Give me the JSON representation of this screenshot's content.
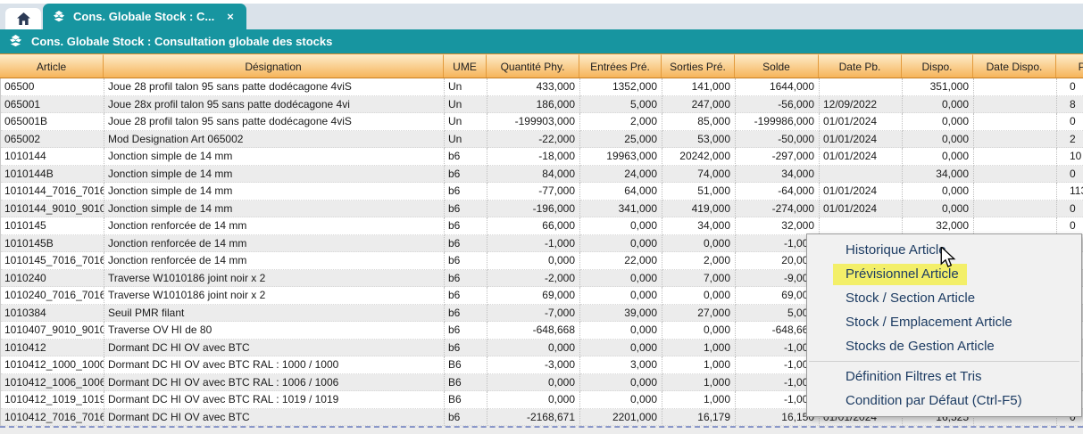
{
  "tabs": {
    "active_tab": {
      "label": "Cons. Globale Stock : C...",
      "close": "×"
    }
  },
  "title_bar": {
    "title": "Cons. Globale Stock : Consultation globale des stocks"
  },
  "table": {
    "columns": [
      {
        "key": "article",
        "label": "Article",
        "align": "al"
      },
      {
        "key": "designation",
        "label": "Désignation",
        "align": "al"
      },
      {
        "key": "ume",
        "label": "UME",
        "align": "al"
      },
      {
        "key": "qte_phy",
        "label": "Quantité Phy.",
        "align": "ar"
      },
      {
        "key": "entrees",
        "label": "Entrées Pré.",
        "align": "ar"
      },
      {
        "key": "sorties",
        "label": "Sorties Pré.",
        "align": "ar"
      },
      {
        "key": "solde",
        "label": "Solde",
        "align": "ar"
      },
      {
        "key": "date_pb",
        "label": "Date Pb.",
        "align": "al"
      },
      {
        "key": "dispo",
        "label": "Dispo.",
        "align": "ar"
      },
      {
        "key": "date_dispo",
        "label": "Date Dispo.",
        "align": "al"
      },
      {
        "key": "pu",
        "label": "PU",
        "align": "apu"
      }
    ],
    "rows": [
      {
        "article": "06500",
        "designation": "Joue 28 profil talon 95 sans patte dodécagone 4viS",
        "ume": "Un",
        "qte_phy": "433,000",
        "entrees": "1352,000",
        "sorties": "141,000",
        "solde": "1644,000",
        "date_pb": "",
        "dispo": "351,000",
        "date_dispo": "",
        "pu": "0"
      },
      {
        "article": "065001",
        "designation": "Joue 28x profil talon 95 sans patte dodécagone 4vi",
        "ume": "Un",
        "qte_phy": "186,000",
        "entrees": "5,000",
        "sorties": "247,000",
        "solde": "-56,000",
        "date_pb": "12/09/2022",
        "dispo": "0,000",
        "date_dispo": "",
        "pu": "8"
      },
      {
        "article": "065001B",
        "designation": "Joue 28 profil talon 95 sans patte dodécagone 4viS",
        "ume": "Un",
        "qte_phy": "-199903,000",
        "entrees": "2,000",
        "sorties": "85,000",
        "solde": "-199986,000",
        "date_pb": "01/01/2024",
        "dispo": "0,000",
        "date_dispo": "",
        "pu": "0"
      },
      {
        "article": "065002",
        "designation": "Mod Designation Art 065002",
        "ume": "Un",
        "qte_phy": "-22,000",
        "entrees": "25,000",
        "sorties": "53,000",
        "solde": "-50,000",
        "date_pb": "01/01/2024",
        "dispo": "0,000",
        "date_dispo": "",
        "pu": "2"
      },
      {
        "article": "1010144",
        "designation": "Jonction simple de 14 mm",
        "ume": "b6",
        "qte_phy": "-18,000",
        "entrees": "19963,000",
        "sorties": "20242,000",
        "solde": "-297,000",
        "date_pb": "01/01/2024",
        "dispo": "0,000",
        "date_dispo": "",
        "pu": "10"
      },
      {
        "article": "1010144B",
        "designation": "Jonction simple de 14 mm",
        "ume": "b6",
        "qte_phy": "84,000",
        "entrees": "24,000",
        "sorties": "74,000",
        "solde": "34,000",
        "date_pb": "",
        "dispo": "34,000",
        "date_dispo": "",
        "pu": "0"
      },
      {
        "article": "1010144_7016_7016",
        "designation": "Jonction simple de 14 mm",
        "ume": "b6",
        "qte_phy": "-77,000",
        "entrees": "64,000",
        "sorties": "51,000",
        "solde": "-64,000",
        "date_pb": "01/01/2024",
        "dispo": "0,000",
        "date_dispo": "",
        "pu": "113"
      },
      {
        "article": "1010144_9010_9010",
        "designation": "Jonction simple de 14 mm",
        "ume": "b6",
        "qte_phy": "-196,000",
        "entrees": "341,000",
        "sorties": "419,000",
        "solde": "-274,000",
        "date_pb": "01/01/2024",
        "dispo": "0,000",
        "date_dispo": "",
        "pu": "0"
      },
      {
        "article": "1010145",
        "designation": "Jonction renforcée de 14 mm",
        "ume": "b6",
        "qte_phy": "66,000",
        "entrees": "0,000",
        "sorties": "34,000",
        "solde": "32,000",
        "date_pb": "",
        "dispo": "32,000",
        "date_dispo": "",
        "pu": "0"
      },
      {
        "article": "1010145B",
        "designation": "Jonction renforcée de 14 mm",
        "ume": "b6",
        "qte_phy": "-1,000",
        "entrees": "0,000",
        "sorties": "0,000",
        "solde": "-1,000",
        "date_pb": "",
        "dispo": "",
        "date_dispo": "",
        "pu": ""
      },
      {
        "article": "1010145_7016_7016",
        "designation": "Jonction renforcée de 14 mm",
        "ume": "b6",
        "qte_phy": "0,000",
        "entrees": "22,000",
        "sorties": "2,000",
        "solde": "20,000",
        "date_pb": "",
        "dispo": "",
        "date_dispo": "",
        "pu": ""
      },
      {
        "article": "1010240",
        "designation": "Traverse W1010186 joint noir x 2",
        "ume": "b6",
        "qte_phy": "-2,000",
        "entrees": "0,000",
        "sorties": "7,000",
        "solde": "-9,000",
        "date_pb": "",
        "dispo": "",
        "date_dispo": "",
        "pu": ""
      },
      {
        "article": "1010240_7016_7016",
        "designation": "Traverse W1010186 joint noir x 2",
        "ume": "b6",
        "qte_phy": "69,000",
        "entrees": "0,000",
        "sorties": "0,000",
        "solde": "69,000",
        "date_pb": "",
        "dispo": "",
        "date_dispo": "",
        "pu": ""
      },
      {
        "article": "1010384",
        "designation": "Seuil PMR filant",
        "ume": "b6",
        "qte_phy": "-7,000",
        "entrees": "39,000",
        "sorties": "27,000",
        "solde": "5,000",
        "date_pb": "",
        "dispo": "",
        "date_dispo": "",
        "pu": ""
      },
      {
        "article": "1010407_9010_9010",
        "designation": "Traverse OV HI de 80",
        "ume": "b6",
        "qte_phy": "-648,668",
        "entrees": "0,000",
        "sorties": "0,000",
        "solde": "-648,668",
        "date_pb": "",
        "dispo": "",
        "date_dispo": "",
        "pu": ""
      },
      {
        "article": "1010412",
        "designation": "Dormant DC HI OV avec BTC",
        "ume": "b6",
        "qte_phy": "0,000",
        "entrees": "0,000",
        "sorties": "1,000",
        "solde": "-1,000",
        "date_pb": "",
        "dispo": "",
        "date_dispo": "",
        "pu": ""
      },
      {
        "article": "1010412_1000_1000",
        "designation": "Dormant DC HI OV avec BTC RAL : 1000 / 1000",
        "ume": "B6",
        "qte_phy": "-3,000",
        "entrees": "3,000",
        "sorties": "1,000",
        "solde": "-1,000",
        "date_pb": "",
        "dispo": "",
        "date_dispo": "",
        "pu": ""
      },
      {
        "article": "1010412_1006_1006",
        "designation": "Dormant DC HI OV avec BTC RAL : 1006 / 1006",
        "ume": "B6",
        "qte_phy": "0,000",
        "entrees": "0,000",
        "sorties": "1,000",
        "solde": "-1,000",
        "date_pb": "",
        "dispo": "",
        "date_dispo": "",
        "pu": ""
      },
      {
        "article": "1010412_1019_1019",
        "designation": "Dormant DC HI OV avec BTC RAL : 1019 / 1019",
        "ume": "B6",
        "qte_phy": "0,000",
        "entrees": "0,000",
        "sorties": "1,000",
        "solde": "-1,000",
        "date_pb": "",
        "dispo": "",
        "date_dispo": "",
        "pu": ""
      },
      {
        "article": "1010412_7016_7016",
        "designation": "Dormant DC HI OV avec BTC",
        "ume": "b6",
        "qte_phy": "-2168,671",
        "entrees": "2201,000",
        "sorties": "16,179",
        "solde": "16,150",
        "date_pb": "01/01/2024",
        "dispo": "16,525",
        "date_dispo": "",
        "pu": "0"
      }
    ]
  },
  "context_menu": {
    "items": [
      {
        "label": "Historique Article"
      },
      {
        "label": "Prévisionnel Article",
        "highlighted": true
      },
      {
        "label": "Stock / Section Article"
      },
      {
        "label": "Stock / Emplacement Article"
      },
      {
        "label": "Stocks de Gestion Article",
        "separator_after": true
      },
      {
        "label": "Définition Filtres et Tris"
      },
      {
        "label": "Condition par Défaut (Ctrl-F5)"
      }
    ]
  },
  "colors": {
    "accent_teal": "#1795a0",
    "header_gradient_top": "#fdeac6",
    "header_gradient_bottom": "#f6b45a",
    "highlight_yellow": "#f3ef69",
    "row_stripe": "#ececec",
    "menu_text": "#1d3c63"
  }
}
